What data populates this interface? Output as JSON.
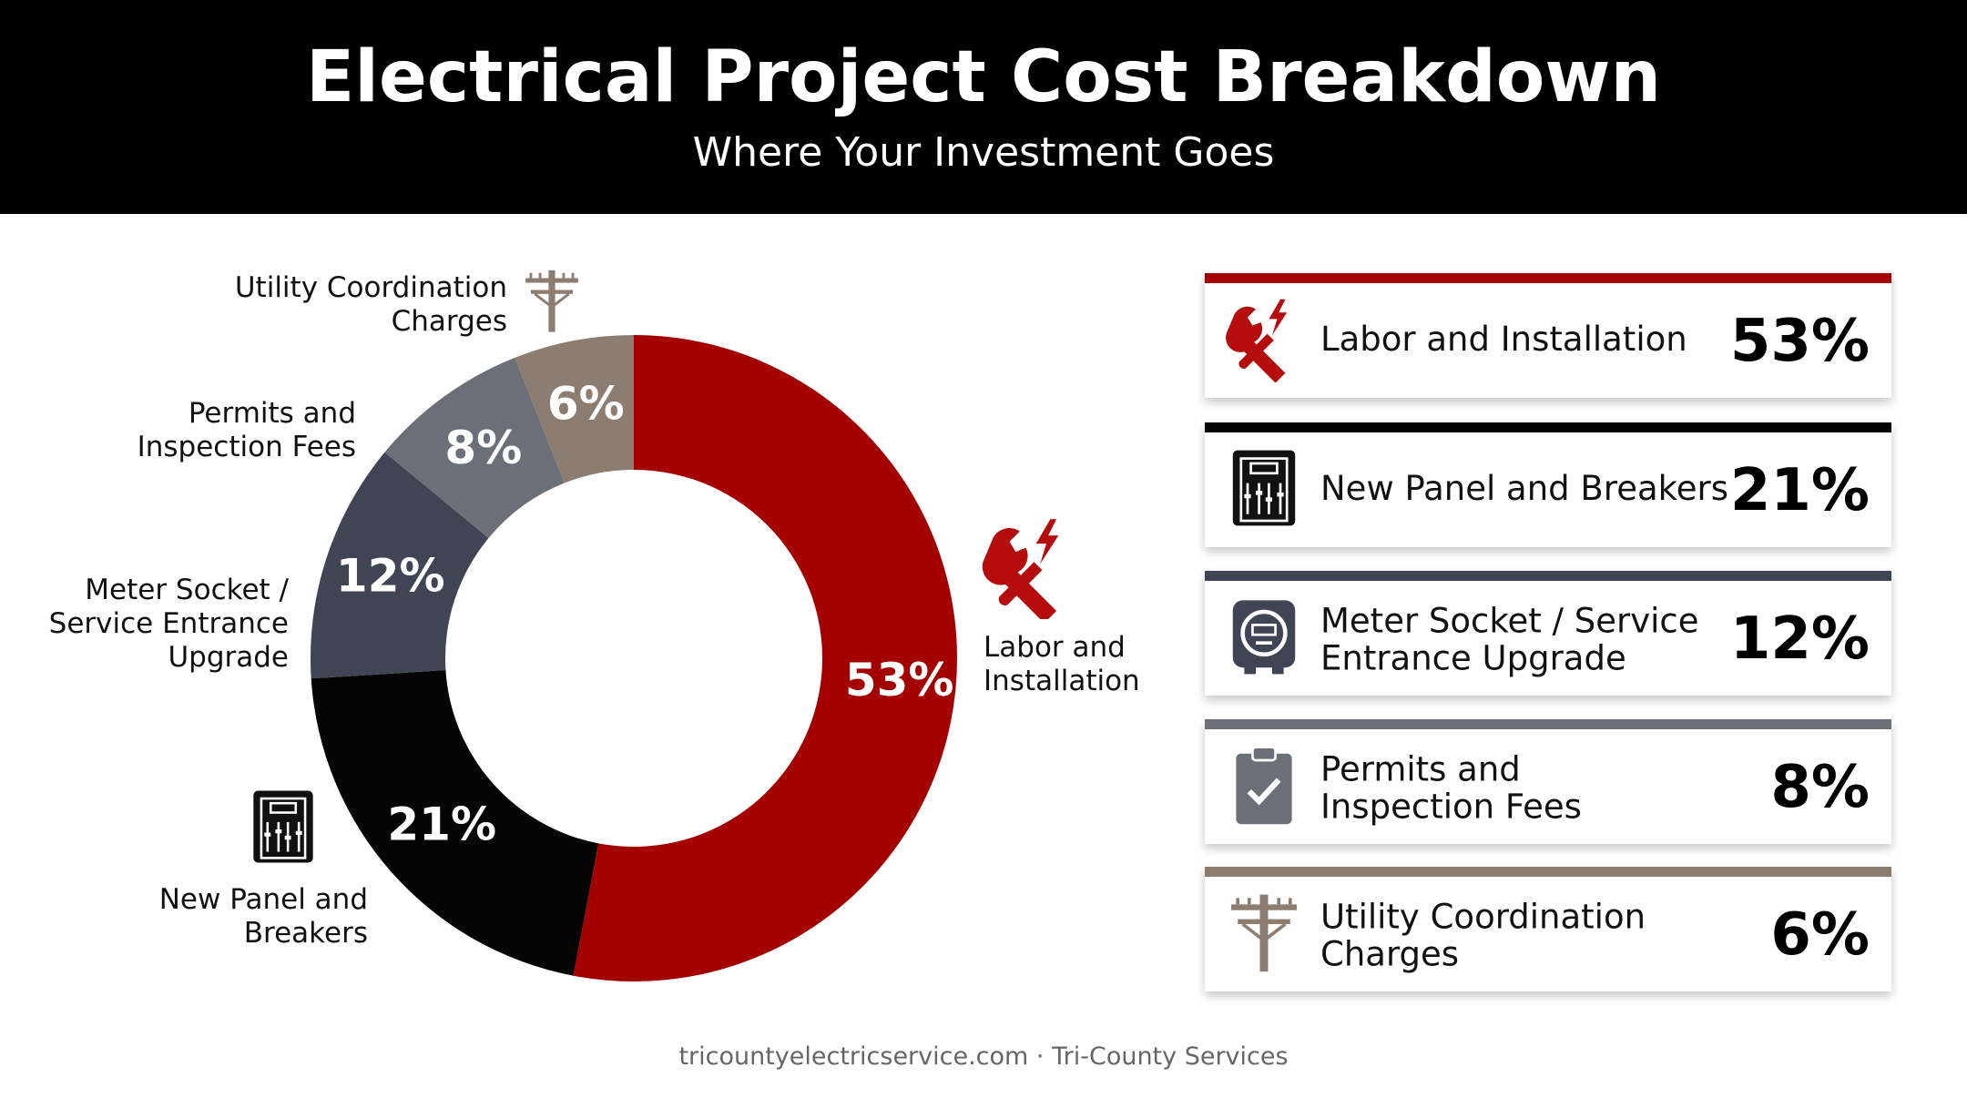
{
  "chart_data": {
    "type": "donut",
    "title": "Electrical Project Cost Breakdown",
    "subtitle": "Where Your Investment Goes",
    "categories": [
      "Labor and Installation",
      "New Panel and Breakers",
      "Meter Socket / Service Entrance Upgrade",
      "Permits and Inspection Fees",
      "Utility Coordination Charges"
    ],
    "values": [
      53,
      21,
      12,
      8,
      6
    ],
    "value_labels": [
      "53%",
      "21%",
      "12%",
      "8%",
      "6%"
    ],
    "colors": [
      "#a50000",
      "#050505",
      "#3f4554",
      "#6b6f78",
      "#8c7d70"
    ],
    "source": "tricountyelectricservice.com · Tri-County Services"
  }
}
